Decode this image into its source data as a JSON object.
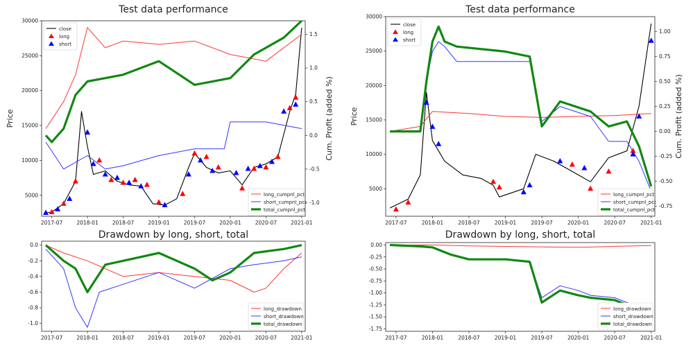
{
  "chart_data": [
    {
      "type": "line",
      "panel": "top-left",
      "title": "Test data performance",
      "ylabel": "Price",
      "ylabel_right": "Cum. Profit (added %)",
      "x_ticks": [
        "2017-07",
        "2018-01",
        "2018-07",
        "2019-01",
        "2019-07",
        "2020-01",
        "2020-07",
        "2021-01"
      ],
      "y_ticks": [
        "5000",
        "10000",
        "15000",
        "20000",
        "25000",
        "30000"
      ],
      "y_right_ticks": [
        "-1.0",
        "-0.5",
        "0.0",
        "0.5",
        "1.0",
        "1.5"
      ],
      "ylim": [
        2000,
        30000
      ],
      "ylim_right": [
        -1.2,
        1.7
      ],
      "legend_upper": [
        "close",
        "long",
        "short"
      ],
      "legend_lower": [
        "long_cumpnl_pct",
        "short_cumpnl_pct",
        "total_cumpnl_pct"
      ],
      "colors": {
        "close": "#000000",
        "long": "#ff0000",
        "short": "#0000ff",
        "long_cumpnl_pct": "#ff3333",
        "short_cumpnl_pct": "#3333ff",
        "total_cumpnl_pct": "#118811"
      },
      "series": [
        {
          "name": "close",
          "axis": "left",
          "x": [
            "2017-06",
            "2017-07",
            "2017-09",
            "2017-11",
            "2017-12",
            "2018-01",
            "2018-02",
            "2018-04",
            "2018-06",
            "2018-08",
            "2018-10",
            "2018-12",
            "2019-02",
            "2019-04",
            "2019-06",
            "2019-07",
            "2019-09",
            "2019-11",
            "2020-01",
            "2020-03",
            "2020-05",
            "2020-07",
            "2020-09",
            "2020-11",
            "2020-12",
            "2021-01"
          ],
          "values": [
            2500,
            2600,
            3800,
            7000,
            17000,
            12000,
            8000,
            8500,
            7000,
            6500,
            6300,
            3800,
            3600,
            4500,
            9000,
            11000,
            9000,
            8200,
            8500,
            6500,
            9000,
            9500,
            10500,
            17000,
            19500,
            29000
          ]
        },
        {
          "name": "long_cumpnl_pct",
          "axis": "right",
          "x": [
            "2017-06",
            "2017-09",
            "2017-11",
            "2018-01",
            "2018-04",
            "2018-07",
            "2019-01",
            "2019-07",
            "2020-01",
            "2020-07",
            "2021-01"
          ],
          "values": [
            0.1,
            0.5,
            0.9,
            1.6,
            1.3,
            1.4,
            1.35,
            1.4,
            1.2,
            1.1,
            1.5
          ]
        },
        {
          "name": "short_cumpnl_pct",
          "axis": "right",
          "x": [
            "2017-06",
            "2017-09",
            "2018-01",
            "2018-04",
            "2018-07",
            "2019-01",
            "2019-07",
            "2019-12",
            "2020-01",
            "2020-07",
            "2021-01"
          ],
          "values": [
            -0.1,
            -0.5,
            -0.3,
            -0.5,
            -0.45,
            -0.3,
            -0.2,
            -0.2,
            0.2,
            0.2,
            0.1
          ]
        },
        {
          "name": "total_cumpnl_pct",
          "axis": "right",
          "x": [
            "2017-06",
            "2017-07",
            "2017-09",
            "2017-11",
            "2018-01",
            "2018-04",
            "2018-07",
            "2019-01",
            "2019-07",
            "2020-01",
            "2020-05",
            "2020-07",
            "2020-10",
            "2021-01"
          ],
          "values": [
            0.0,
            -0.1,
            0.1,
            0.6,
            0.8,
            0.85,
            0.9,
            1.1,
            0.75,
            0.85,
            1.2,
            1.3,
            1.45,
            1.7
          ]
        }
      ],
      "markers": {
        "long": {
          "x": [
            "2017-07",
            "2017-09",
            "2017-11",
            "2018-01",
            "2018-03",
            "2018-05",
            "2018-07",
            "2018-09",
            "2018-11",
            "2019-01",
            "2019-05",
            "2019-07",
            "2019-09",
            "2019-11",
            "2020-03",
            "2020-05",
            "2020-07",
            "2020-09",
            "2020-11",
            "2020-12"
          ],
          "values": [
            2600,
            3800,
            7000,
            14000,
            10000,
            7200,
            6800,
            7200,
            6500,
            4000,
            5200,
            11000,
            10500,
            9000,
            6000,
            8800,
            9000,
            10500,
            17500,
            19000
          ]
        },
        "short": {
          "x": [
            "2017-06",
            "2017-08",
            "2017-10",
            "2018-01",
            "2018-02",
            "2018-04",
            "2018-06",
            "2018-08",
            "2018-10",
            "2019-02",
            "2019-06",
            "2019-08",
            "2019-10",
            "2020-02",
            "2020-04",
            "2020-06",
            "2020-08",
            "2020-10",
            "2020-12"
          ],
          "values": [
            2500,
            3000,
            4500,
            14000,
            9500,
            8000,
            7500,
            6800,
            6300,
            3600,
            8000,
            10000,
            8500,
            8200,
            8800,
            9200,
            9800,
            17000,
            18000
          ]
        }
      }
    },
    {
      "type": "line",
      "panel": "bottom-left",
      "title": "Drawdown by long, short, total",
      "x_ticks": [
        "2017-07",
        "2018-01",
        "2018-07",
        "2019-01",
        "2019-07",
        "2020-01",
        "2020-07",
        "2021-01"
      ],
      "y_ticks": [
        "-1.0",
        "-0.8",
        "-0.6",
        "-0.4",
        "-0.2",
        "0.0"
      ],
      "ylim": [
        -1.1,
        0.05
      ],
      "legend": [
        "long_drawdown",
        "short_drawdown",
        "total_drawdown"
      ],
      "series": [
        {
          "name": "long_drawdown",
          "x": [
            "2017-06",
            "2017-09",
            "2018-01",
            "2018-04",
            "2018-07",
            "2019-01",
            "2019-07",
            "2020-01",
            "2020-05",
            "2020-07",
            "2020-10",
            "2021-01"
          ],
          "values": [
            0.0,
            -0.1,
            -0.2,
            -0.3,
            -0.4,
            -0.35,
            -0.4,
            -0.45,
            -0.6,
            -0.55,
            -0.3,
            -0.1
          ]
        },
        {
          "name": "short_drawdown",
          "x": [
            "2017-06",
            "2017-09",
            "2017-11",
            "2018-01",
            "2018-03",
            "2018-07",
            "2019-01",
            "2019-07",
            "2020-01",
            "2020-05",
            "2020-10",
            "2021-01"
          ],
          "values": [
            -0.05,
            -0.3,
            -0.8,
            -1.05,
            -0.6,
            -0.5,
            -0.35,
            -0.55,
            -0.3,
            -0.25,
            -0.2,
            -0.15
          ]
        },
        {
          "name": "total_drawdown",
          "x": [
            "2017-06",
            "2017-09",
            "2017-11",
            "2018-01",
            "2018-04",
            "2018-07",
            "2019-01",
            "2019-07",
            "2019-10",
            "2020-01",
            "2020-05",
            "2020-10",
            "2021-01"
          ],
          "values": [
            0.0,
            -0.2,
            -0.3,
            -0.6,
            -0.25,
            -0.2,
            -0.1,
            -0.3,
            -0.45,
            -0.35,
            -0.1,
            -0.05,
            0.0
          ]
        }
      ]
    },
    {
      "type": "line",
      "panel": "top-right",
      "title": "Test data performance",
      "ylabel": "Price",
      "ylabel_right": "Cum. Profit (added %)",
      "x_ticks": [
        "2017-07",
        "2018-01",
        "2018-07",
        "2019-01",
        "2019-07",
        "2020-01",
        "2020-07",
        "2021-01"
      ],
      "y_ticks": [
        "5000",
        "10000",
        "15000",
        "20000",
        "25000",
        "30000"
      ],
      "y_right_ticks": [
        "-0.75",
        "-0.50",
        "-0.25",
        "0.00",
        "0.25",
        "0.50",
        "0.75",
        "1.00"
      ],
      "ylim": [
        1000,
        30000
      ],
      "ylim_right": [
        -0.85,
        1.15
      ],
      "legend_upper": [
        "close",
        "long",
        "short"
      ],
      "legend_lower": [
        "long_cumpnl_pct",
        "short_cumpnl_pct",
        "total_cumpnl_pct"
      ],
      "series": [
        {
          "name": "close",
          "axis": "left",
          "x": [
            "2017-06",
            "2017-09",
            "2017-11",
            "2017-12",
            "2018-01",
            "2018-03",
            "2018-06",
            "2018-09",
            "2018-11",
            "2018-12",
            "2019-04",
            "2019-06",
            "2019-09",
            "2019-12",
            "2020-03",
            "2020-06",
            "2020-09",
            "2020-11",
            "2021-01"
          ],
          "values": [
            2200,
            3500,
            7000,
            19000,
            12000,
            9000,
            7000,
            6500,
            5500,
            3800,
            5000,
            10000,
            9000,
            7500,
            6000,
            9500,
            10500,
            17000,
            29000
          ]
        },
        {
          "name": "long_cumpnl_pct",
          "axis": "right",
          "x": [
            "2017-06",
            "2017-11",
            "2018-01",
            "2018-07",
            "2019-01",
            "2019-07",
            "2020-01",
            "2020-07",
            "2021-01"
          ],
          "values": [
            0.0,
            0.05,
            0.2,
            0.18,
            0.15,
            0.14,
            0.15,
            0.16,
            0.18
          ]
        },
        {
          "name": "short_cumpnl_pct",
          "axis": "right",
          "x": [
            "2017-06",
            "2017-11",
            "2017-12",
            "2018-01",
            "2018-02",
            "2018-03",
            "2018-05",
            "2019-01",
            "2019-05",
            "2019-07",
            "2019-10",
            "2020-03",
            "2020-06",
            "2020-09",
            "2020-11",
            "2021-01"
          ],
          "values": [
            0.0,
            0.0,
            0.5,
            0.8,
            0.9,
            0.85,
            0.7,
            0.7,
            0.7,
            0.1,
            0.25,
            0.15,
            -0.1,
            -0.1,
            -0.3,
            -0.6
          ]
        },
        {
          "name": "total_cumpnl_pct",
          "axis": "right",
          "x": [
            "2017-06",
            "2017-11",
            "2017-12",
            "2018-01",
            "2018-02",
            "2018-03",
            "2018-05",
            "2019-01",
            "2019-05",
            "2019-07",
            "2019-10",
            "2020-03",
            "2020-06",
            "2020-09",
            "2020-11",
            "2021-01"
          ],
          "values": [
            0.0,
            0.0,
            0.5,
            0.9,
            1.05,
            0.9,
            0.85,
            0.8,
            0.75,
            0.05,
            0.3,
            0.2,
            0.05,
            0.1,
            -0.15,
            -0.55
          ]
        }
      ],
      "markers": {
        "long": {
          "x": [
            "2017-07",
            "2017-09",
            "2018-11",
            "2018-12",
            "2019-12",
            "2020-03",
            "2020-06",
            "2020-10"
          ],
          "values": [
            2000,
            3000,
            6000,
            5200,
            8500,
            5000,
            7500,
            10500
          ]
        },
        "short": {
          "x": [
            "2017-12",
            "2018-01",
            "2018-02",
            "2019-04",
            "2019-05",
            "2019-10",
            "2020-02",
            "2020-10",
            "2020-11",
            "2021-01"
          ],
          "values": [
            17500,
            14000,
            11500,
            4500,
            5500,
            9000,
            8000,
            10000,
            15500,
            26500
          ]
        }
      }
    },
    {
      "type": "line",
      "panel": "bottom-right",
      "title": "Drawdown by long, short, total",
      "x_ticks": [
        "2017-07",
        "2018-01",
        "2018-07",
        "2019-01",
        "2019-07",
        "2020-01",
        "2020-07",
        "2021-01"
      ],
      "y_ticks": [
        "-1.75",
        "-1.50",
        "-1.25",
        "-1.00",
        "-0.75",
        "-0.50",
        "-0.25",
        "0.00"
      ],
      "ylim": [
        -1.8,
        0.05
      ],
      "legend": [
        "long_drawdown",
        "short_drawdown",
        "total_drawdown"
      ],
      "series": [
        {
          "name": "long_drawdown",
          "x": [
            "2017-06",
            "2018-01",
            "2018-07",
            "2019-01",
            "2019-07",
            "2020-01",
            "2020-07",
            "2021-01"
          ],
          "values": [
            0.0,
            0.0,
            -0.02,
            -0.03,
            -0.04,
            -0.05,
            -0.03,
            -0.01
          ]
        },
        {
          "name": "short_drawdown",
          "x": [
            "2017-06",
            "2017-11",
            "2018-01",
            "2018-04",
            "2018-07",
            "2019-01",
            "2019-05",
            "2019-07",
            "2019-10",
            "2020-01",
            "2020-03",
            "2020-07",
            "2020-10"
          ],
          "values": [
            0.0,
            -0.03,
            -0.05,
            -0.2,
            -0.3,
            -0.3,
            -0.35,
            -1.1,
            -0.85,
            -0.95,
            -1.05,
            -1.1,
            -1.25
          ]
        },
        {
          "name": "total_drawdown",
          "x": [
            "2017-06",
            "2017-11",
            "2018-01",
            "2018-04",
            "2018-07",
            "2019-01",
            "2019-05",
            "2019-07",
            "2019-10",
            "2020-01",
            "2020-03",
            "2020-07",
            "2020-10"
          ],
          "values": [
            0.0,
            -0.03,
            -0.05,
            -0.2,
            -0.3,
            -0.3,
            -0.35,
            -1.2,
            -0.95,
            -1.05,
            -1.1,
            -1.15,
            -1.3
          ]
        }
      ]
    }
  ]
}
